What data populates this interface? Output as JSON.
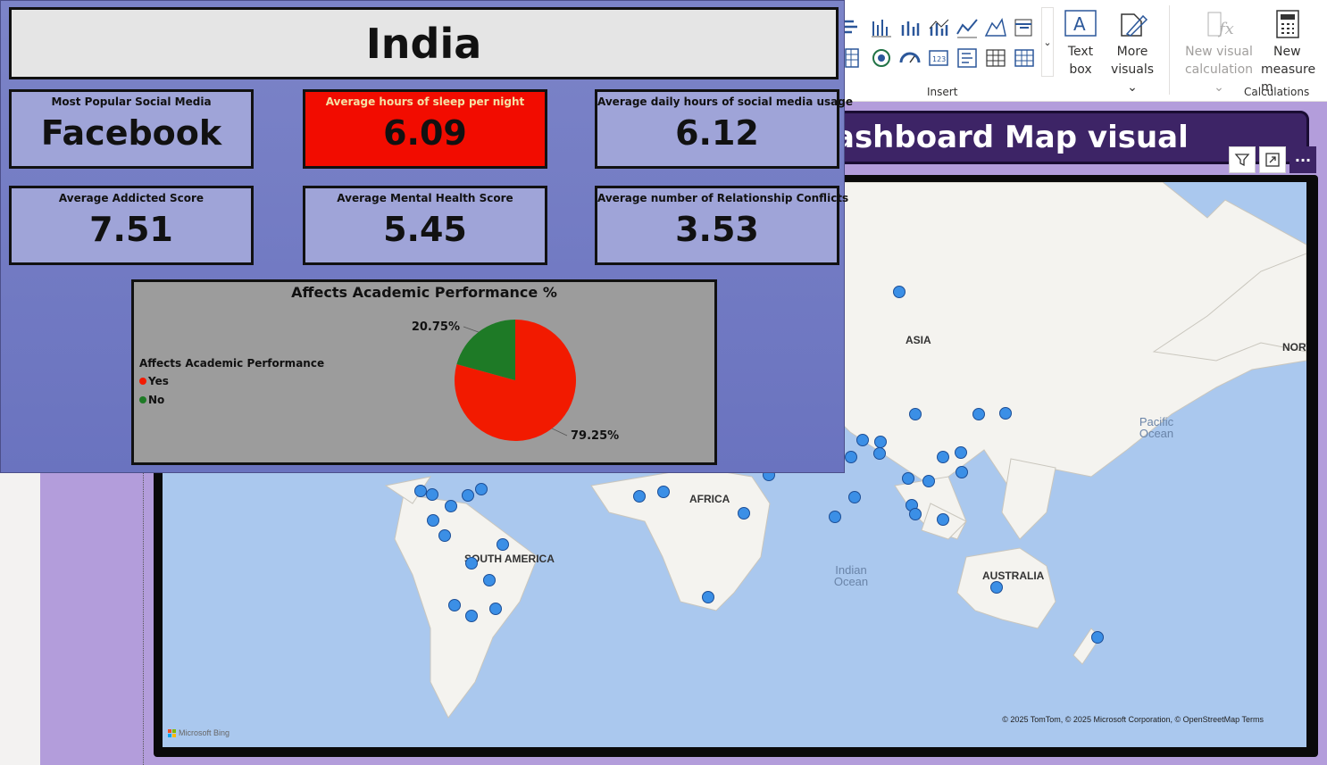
{
  "ribbon": {
    "text_box_label_1": "Text",
    "text_box_label_2": "box",
    "more_visuals_label_1": "More",
    "more_visuals_label_2": "visuals",
    "new_visual_calc_label_1": "New visual",
    "new_visual_calc_label_2": "calculation",
    "new_measure_label_1": "New",
    "new_measure_label_2": "measure m",
    "insert_group_label": "Insert",
    "calculations_group_label": "Calculations"
  },
  "dashboard": {
    "country": "India",
    "cards": [
      {
        "label": "Most Popular Social Media",
        "value": "Facebook",
        "alert": false
      },
      {
        "label": "Average hours of sleep per night",
        "value": "6.09",
        "alert": true
      },
      {
        "label": "Average daily hours of social media usage",
        "value": "6.12",
        "alert": false
      },
      {
        "label": "Average Addicted Score",
        "value": "7.51",
        "alert": false
      },
      {
        "label": "Average Mental Health Score",
        "value": "5.45",
        "alert": false
      },
      {
        "label": "Average number of Relationship Conflicts",
        "value": "3.53",
        "alert": false
      }
    ]
  },
  "chart_data": {
    "type": "pie",
    "title": "Affects Academic Performance %",
    "legend_title": "Affects Academic Performance",
    "categories": [
      "Yes",
      "No"
    ],
    "values": [
      79.25,
      20.75
    ],
    "labels": [
      "79.25%",
      "20.75%"
    ],
    "colors": [
      "#f21a00",
      "#1e7a26"
    ],
    "legend_position": "left"
  },
  "map_visual": {
    "title": "ashboard Map visual",
    "continent_labels": [
      "ASIA",
      "AFRICA",
      "SOUTH AMERICA",
      "AUSTRALIA",
      "NORT"
    ],
    "ocean_labels": [
      "Pacific Ocean",
      "Indian Ocean"
    ],
    "attribution": "© 2025 TomTom, © 2025 Microsoft Corporation, © OpenStreetMap  Terms",
    "bing_label": "Microsoft Bing",
    "dot_color": "#3b8fe6"
  }
}
